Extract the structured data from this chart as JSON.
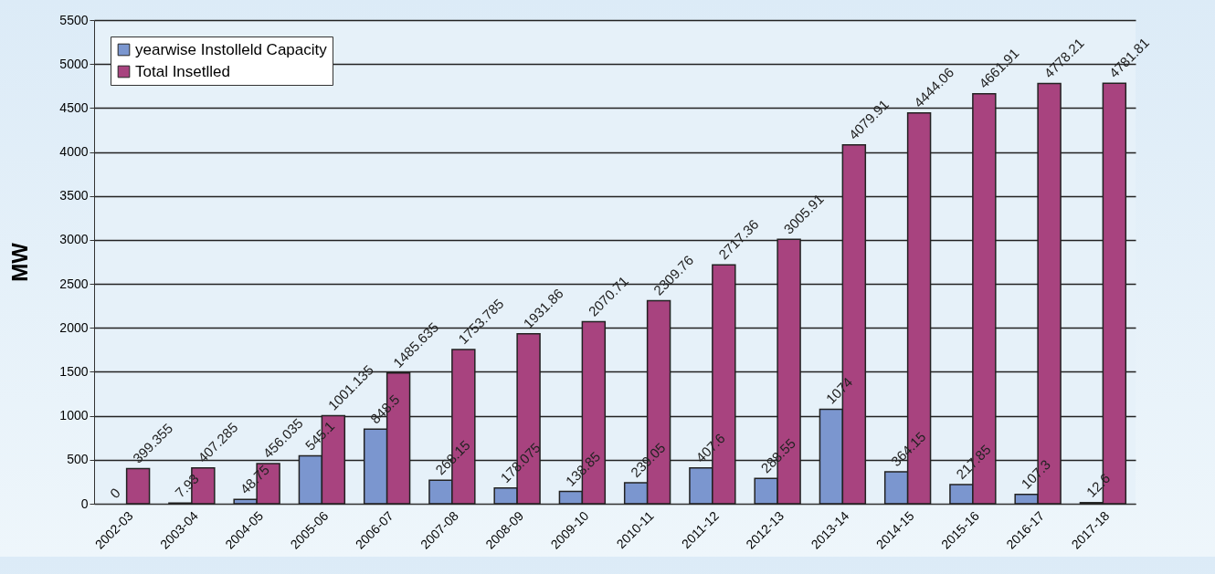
{
  "chart_data": {
    "type": "bar",
    "ylabel": "MW",
    "categories": [
      "2002-03",
      "2003-04",
      "2004-05",
      "2005-06",
      "2006-07",
      "2007-08",
      "2008-09",
      "2009-10",
      "2010-11",
      "2011-12",
      "2012-13",
      "2013-14",
      "2014-15",
      "2015-16",
      "2016-17",
      "2017-18"
    ],
    "series": [
      {
        "name": "yearwise Instolleld Capacity",
        "color": "#7b96cf",
        "values": [
          0,
          7.93,
          48.75,
          545.1,
          848.5,
          268.15,
          178.075,
          138.85,
          239.05,
          407.6,
          288.55,
          1074,
          364.15,
          217.85,
          107.3,
          12.6
        ]
      },
      {
        "name": "Total Insetlled",
        "color": "#a8437f",
        "values": [
          399.355,
          407.285,
          456.035,
          1001.135,
          1485.635,
          1753.785,
          1931.86,
          2070.71,
          2309.76,
          2717.36,
          3005.91,
          4079.91,
          4444.06,
          4661.91,
          4778.21,
          4781.81
        ]
      }
    ],
    "ylim": [
      0,
      5500
    ],
    "yticks": [
      0,
      500,
      {
        "value": 1000,
        "label": "1000"
      },
      {
        "value": 1500,
        "label": "1500"
      },
      {
        "value": 2000,
        "label": "2000"
      },
      {
        "value": 2500,
        "label": "2500"
      },
      {
        "value": 3000,
        "label": "3000"
      },
      {
        "value": 3500,
        "label": "3500"
      },
      {
        "value": 4000,
        "label": "4000"
      },
      {
        "value": 4500,
        "label": "4500"
      },
      {
        "value": 5000,
        "label": "5000"
      },
      {
        "value": 5500,
        "label": "5500"
      }
    ],
    "grid": "y",
    "legend": "top left",
    "data_labels": true
  }
}
